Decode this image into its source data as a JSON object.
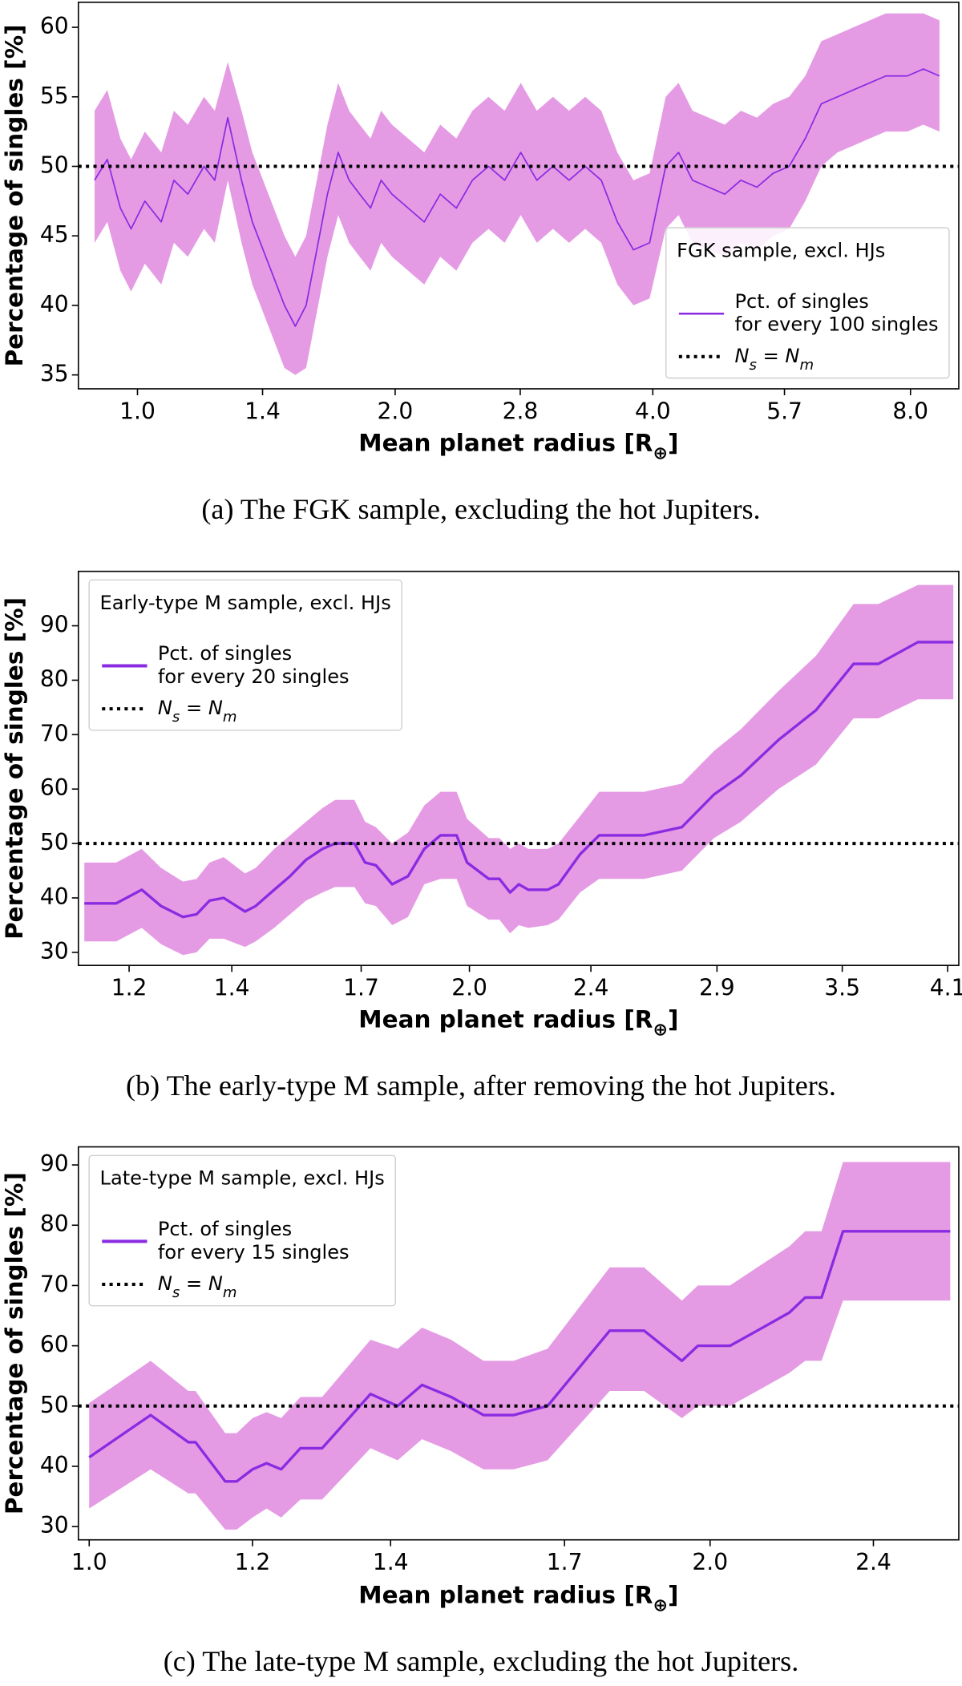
{
  "chart_data": [
    {
      "type": "line",
      "xlabel": "Mean planet radius [R_⊕]",
      "ylabel": "Percentage of singles [%]",
      "caption": "(a) The FGK sample, excluding the hot Jupiters.",
      "legend_title": "FGK sample, excl. HJs",
      "legend_position": "lower right",
      "log_x": true,
      "xlim": [
        0.853,
        9.11
      ],
      "xticks": [
        {
          "value": 1,
          "label": "1.0"
        },
        1.4,
        {
          "value": 2,
          "label": "2.0"
        },
        2.8,
        {
          "value": 4,
          "label": "4.0"
        },
        5.7,
        {
          "value": 8,
          "label": "8.0"
        }
      ],
      "ylim": [
        34,
        61.8
      ],
      "yticks": [
        35,
        40,
        45,
        50,
        55,
        60
      ],
      "x": [
        0.891,
        0.922,
        0.955,
        0.983,
        1.02,
        1.066,
        1.103,
        1.145,
        1.196,
        1.231,
        1.275,
        1.323,
        1.362,
        1.402,
        1.443,
        1.485,
        1.529,
        1.574,
        1.62,
        1.667,
        1.716,
        1.767,
        1.818,
        1.872,
        1.926,
        1.983,
        2.071,
        2.163,
        2.258,
        2.358,
        2.462,
        2.571,
        2.685,
        2.804,
        2.928,
        3.058,
        3.193,
        3.335,
        3.482,
        3.636,
        3.797,
        3.966,
        4.141,
        4.287,
        4.451,
        4.648,
        4.854,
        5.069,
        5.293,
        5.528,
        5.772,
        6.028,
        6.294,
        6.573,
        6.864,
        7.168,
        7.485,
        7.931,
        8.282,
        8.649
      ],
      "series": [
        {
          "name": "Pct. of singles\nfor every 100 singles",
          "color": "#8a2be2",
          "band_color": "#e59be4",
          "values": [
            49,
            50.5,
            47,
            45.5,
            47.5,
            46,
            49,
            48,
            50,
            49,
            53.5,
            49,
            46,
            44,
            42,
            40,
            38.5,
            40,
            44,
            48,
            51,
            49,
            48,
            47,
            49,
            48,
            47,
            46,
            48,
            47,
            49,
            50,
            49,
            51,
            49,
            50,
            49,
            50,
            49,
            46,
            44,
            44.5,
            50,
            51,
            49,
            48.5,
            48,
            49,
            48.5,
            49.5,
            50,
            52,
            54.5,
            55,
            55.5,
            56,
            56.5,
            56.5,
            57,
            56.5
          ],
          "band_upper": [
            54,
            55.5,
            52,
            50.5,
            52.5,
            51,
            54,
            53,
            55,
            54,
            57.5,
            54,
            51,
            49,
            47,
            45,
            43.5,
            45,
            49,
            53,
            56,
            54,
            53,
            52,
            54,
            53,
            52,
            51,
            53,
            52,
            54,
            55,
            54,
            56,
            54,
            55,
            54,
            55,
            54,
            51,
            49,
            49.5,
            55,
            56,
            54,
            53.5,
            53,
            54,
            53.5,
            54.5,
            55,
            56.5,
            59,
            59.5,
            60,
            60.5,
            61,
            61,
            61,
            60.5
          ],
          "band_lower": [
            44.5,
            46,
            42.5,
            41,
            43,
            41.5,
            44.5,
            43.5,
            45.5,
            44.5,
            49,
            44.5,
            41.5,
            39.5,
            37.5,
            35.5,
            35,
            35.5,
            39.5,
            43.5,
            46.5,
            44.5,
            43.5,
            42.5,
            44.5,
            43.5,
            42.5,
            41.5,
            43.5,
            42.5,
            44.5,
            45.5,
            44.5,
            46.5,
            44.5,
            45.5,
            44.5,
            45.5,
            44.5,
            41.5,
            40,
            40.5,
            45.5,
            46.5,
            44.5,
            44,
            43.5,
            44.5,
            44,
            45,
            45.5,
            47.5,
            50,
            51,
            51.5,
            52,
            52.5,
            52.5,
            53,
            52.5
          ]
        }
      ],
      "reference_line": {
        "value": 50,
        "label": "N_s = N_m",
        "color": "#000000"
      }
    },
    {
      "type": "line",
      "xlabel": "Mean planet radius [R_⊕]",
      "ylabel": "Percentage of singles [%]",
      "caption": "(b) The early-type M sample, after removing the hot Jupiters.",
      "legend_title": "Early-type M sample, excl. HJs",
      "legend_position": "upper left",
      "log_x": true,
      "xlim": [
        1.112,
        4.169
      ],
      "xticks": [
        1.2,
        1.4,
        1.7,
        {
          "value": 2,
          "label": "2.0"
        },
        2.4,
        2.9,
        3.5,
        4.1
      ],
      "ylim": [
        27.6,
        100
      ],
      "yticks": [
        30,
        40,
        50,
        60,
        70,
        80,
        90
      ],
      "x": [
        1.122,
        1.177,
        1.223,
        1.259,
        1.301,
        1.328,
        1.354,
        1.383,
        1.428,
        1.451,
        1.492,
        1.528,
        1.565,
        1.604,
        1.635,
        1.683,
        1.71,
        1.738,
        1.781,
        1.824,
        1.869,
        1.915,
        1.962,
        1.993,
        2.059,
        2.092,
        2.126,
        2.154,
        2.185,
        2.249,
        2.286,
        2.361,
        2.43,
        2.6,
        2.751,
        2.887,
        3.006,
        3.18,
        3.365,
        3.56,
        3.695,
        3.921,
        4.135
      ],
      "series": [
        {
          "name": "Pct. of singles\nfor every 20 singles",
          "color": "#8a2be2",
          "band_color": "#e59be4",
          "values": [
            39,
            39,
            41.5,
            38.5,
            36.5,
            37,
            39.5,
            40,
            37.5,
            38.5,
            41.5,
            44,
            47,
            49,
            50,
            50,
            46.5,
            46,
            42.5,
            44,
            49,
            51.5,
            51.5,
            46.5,
            43.5,
            43.5,
            41,
            42.5,
            41.5,
            41.5,
            42.5,
            48,
            51.5,
            51.5,
            53,
            59,
            62.5,
            69,
            74.5,
            83,
            83,
            87,
            87
          ],
          "band_upper": [
            46.5,
            46.5,
            49,
            45.5,
            43,
            43.5,
            46.5,
            47.5,
            44.5,
            45.5,
            49,
            51.5,
            54,
            56.5,
            58,
            58,
            54,
            53,
            50,
            52,
            57,
            59.5,
            59.5,
            54.5,
            51,
            51,
            49,
            50,
            49,
            49,
            50,
            55,
            59.5,
            59.5,
            61,
            67,
            71,
            78,
            84.5,
            94,
            94,
            97.5,
            97.5
          ],
          "band_lower": [
            32,
            32,
            34.5,
            31.5,
            29.5,
            30,
            32.5,
            32.5,
            31,
            32,
            34.5,
            37,
            39.5,
            41,
            42,
            42,
            39,
            38.5,
            35,
            36.5,
            42.5,
            43.5,
            43.5,
            38.5,
            36,
            36,
            33.5,
            35,
            34.5,
            35,
            36,
            41,
            43.5,
            43.5,
            45,
            51,
            54,
            60,
            64.5,
            73,
            73,
            76.5,
            76.5
          ]
        }
      ],
      "reference_line": {
        "value": 50,
        "label": "N_s = N_m",
        "color": "#000000"
      }
    },
    {
      "type": "line",
      "xlabel": "Mean planet radius [R_⊕]",
      "ylabel": "Percentage of singles [%]",
      "caption": "(c) The late-type M sample, excluding the hot Jupiters.",
      "legend_title": "Late-type M sample, excl. HJs",
      "legend_position": "upper left",
      "log_x": true,
      "xlim": [
        0.988,
        2.64
      ],
      "xticks": [
        {
          "value": 1,
          "label": "1.0"
        },
        1.2,
        1.4,
        1.7,
        {
          "value": 2,
          "label": "2.0"
        },
        2.4
      ],
      "ylim": [
        27.8,
        93
      ],
      "yticks": [
        30,
        40,
        50,
        60,
        70,
        80,
        90
      ],
      "x": [
        1,
        1.071,
        1.117,
        1.126,
        1.164,
        1.179,
        1.2,
        1.219,
        1.239,
        1.266,
        1.297,
        1.369,
        1.411,
        1.45,
        1.498,
        1.553,
        1.606,
        1.668,
        1.788,
        1.858,
        1.938,
        1.973,
        2.045,
        2.108,
        2.185,
        2.224,
        2.265,
        2.32,
        2.615
      ],
      "series": [
        {
          "name": "Pct. of singles\nfor every 15 singles",
          "color": "#8a2be2",
          "band_color": "#e59be4",
          "values": [
            41.5,
            48.5,
            44,
            44,
            37.5,
            37.5,
            39.5,
            40.5,
            39.5,
            43,
            43,
            52,
            50,
            53.5,
            51.5,
            48.5,
            48.5,
            50,
            62.5,
            62.5,
            57.5,
            60,
            60,
            62.5,
            65.5,
            68,
            68,
            79,
            79
          ],
          "band_upper": [
            50.5,
            57.5,
            52.5,
            52.5,
            45.5,
            45.5,
            48,
            49,
            48,
            51.5,
            51.5,
            61,
            59.5,
            63,
            61,
            57.5,
            57.5,
            59.5,
            73,
            73,
            67.5,
            70,
            70,
            73,
            76.5,
            79,
            79,
            90.5,
            90.5
          ],
          "band_lower": [
            33,
            39.5,
            35.5,
            35.5,
            29.5,
            29.5,
            31.5,
            33,
            31.5,
            34.5,
            34.5,
            43,
            41,
            44.5,
            42.5,
            39.5,
            39.5,
            41,
            52.5,
            52.5,
            48,
            50,
            50,
            52.5,
            55.5,
            57.5,
            57.5,
            67.5,
            67.5
          ]
        }
      ],
      "reference_line": {
        "value": 50,
        "label": "N_s = N_m",
        "color": "#000000"
      }
    }
  ]
}
